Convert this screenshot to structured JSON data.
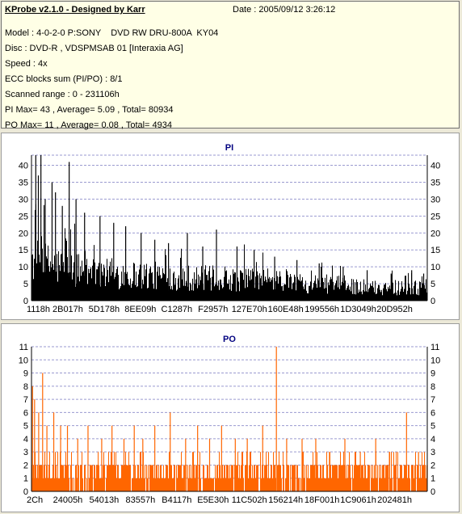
{
  "header": {
    "app_title": "KProbe v2.1.0 - Designed by Karr",
    "date": "Date : 2005/09/12 3:26:12",
    "model": "Model : 4-0-2-0 P:SONY    DVD RW DRU-800A  KY04",
    "disc": "Disc : DVD-R , VDSPMSAB 01 [Interaxia AG]",
    "speed": "Speed : 4x",
    "ecc": "ECC blocks sum (PI/PO) : 8/1",
    "range": "Scanned range : 0 - 231106h",
    "pi_stats": "PI Max= 43 , Average= 5.09 , Total= 80934",
    "po_stats": "PO Max= 11 , Average= 0.08 , Total= 4934"
  },
  "colors": {
    "pi_bars": "#000000",
    "po_bars": "#ff6600",
    "grid": "#9a9ad0",
    "axis": "#000000",
    "title": "#000080"
  },
  "chart_data": [
    {
      "type": "bar",
      "title": "PI",
      "series_color": "#000000",
      "x_tick_labels": [
        "1118h",
        "2B017h",
        "5D178h",
        "8EE09h",
        "C1287h",
        "F2957h",
        "127E70h",
        "160E48h",
        "199556h",
        "1D3049h",
        "20D952h"
      ],
      "y_ticks": [
        0,
        5,
        10,
        15,
        20,
        25,
        30,
        35,
        40
      ],
      "ylim": [
        0,
        43
      ],
      "xlim": [
        0,
        231106
      ],
      "max": 43,
      "average": 5.09,
      "total": 80934,
      "grid": true,
      "profile": [
        {
          "x": 0,
          "y": 14
        },
        {
          "x": 15000,
          "y": 12
        },
        {
          "x": 35000,
          "y": 10
        },
        {
          "x": 60000,
          "y": 9
        },
        {
          "x": 90000,
          "y": 8
        },
        {
          "x": 120000,
          "y": 7.5
        },
        {
          "x": 150000,
          "y": 6.5
        },
        {
          "x": 180000,
          "y": 5.5
        },
        {
          "x": 200000,
          "y": 4.5
        },
        {
          "x": 231106,
          "y": 4.5
        }
      ],
      "peaks": [
        {
          "x": 2500,
          "y": 43
        },
        {
          "x": 4000,
          "y": 37
        },
        {
          "x": 5500,
          "y": 43
        },
        {
          "x": 8000,
          "y": 30
        },
        {
          "x": 12000,
          "y": 35
        },
        {
          "x": 14000,
          "y": 32
        },
        {
          "x": 18000,
          "y": 28
        },
        {
          "x": 22000,
          "y": 41
        },
        {
          "x": 26000,
          "y": 30
        },
        {
          "x": 31000,
          "y": 26
        },
        {
          "x": 40000,
          "y": 25
        },
        {
          "x": 48000,
          "y": 23
        },
        {
          "x": 55000,
          "y": 22
        },
        {
          "x": 64000,
          "y": 20
        },
        {
          "x": 72000,
          "y": 18
        },
        {
          "x": 80000,
          "y": 17
        },
        {
          "x": 91000,
          "y": 20
        },
        {
          "x": 100000,
          "y": 16
        },
        {
          "x": 108000,
          "y": 21
        },
        {
          "x": 120000,
          "y": 16
        },
        {
          "x": 130000,
          "y": 15
        },
        {
          "x": 142000,
          "y": 13
        },
        {
          "x": 155000,
          "y": 12
        },
        {
          "x": 168000,
          "y": 11
        },
        {
          "x": 182000,
          "y": 10
        },
        {
          "x": 196000,
          "y": 9
        },
        {
          "x": 210000,
          "y": 8
        },
        {
          "x": 222000,
          "y": 9
        },
        {
          "x": 229000,
          "y": 8
        }
      ]
    },
    {
      "type": "bar",
      "title": "PO",
      "series_color": "#ff6600",
      "x_tick_labels": [
        "2Ch",
        "24005h",
        "54013h",
        "83557h",
        "B4117h",
        "E5E30h",
        "11C502h",
        "156214h",
        "18F001h",
        "1C9061h",
        "202481h"
      ],
      "y_ticks": [
        0,
        1,
        2,
        3,
        4,
        5,
        6,
        7,
        8,
        9,
        10,
        11
      ],
      "ylim": [
        0,
        11
      ],
      "xlim": [
        0,
        231106
      ],
      "max": 11,
      "average": 0.08,
      "total": 4934,
      "grid": true,
      "baseline_level": 2,
      "spikes": [
        {
          "x": 600,
          "y": 8
        },
        {
          "x": 1800,
          "y": 7
        },
        {
          "x": 4200,
          "y": 6
        },
        {
          "x": 6500,
          "y": 9
        },
        {
          "x": 9000,
          "y": 5
        },
        {
          "x": 13000,
          "y": 6
        },
        {
          "x": 17000,
          "y": 5
        },
        {
          "x": 21000,
          "y": 5
        },
        {
          "x": 27000,
          "y": 4
        },
        {
          "x": 33000,
          "y": 5
        },
        {
          "x": 41000,
          "y": 4
        },
        {
          "x": 47000,
          "y": 5
        },
        {
          "x": 54000,
          "y": 4
        },
        {
          "x": 60000,
          "y": 5
        },
        {
          "x": 65000,
          "y": 4
        },
        {
          "x": 72000,
          "y": 5
        },
        {
          "x": 81000,
          "y": 6
        },
        {
          "x": 90000,
          "y": 4
        },
        {
          "x": 97000,
          "y": 5
        },
        {
          "x": 104000,
          "y": 4
        },
        {
          "x": 111000,
          "y": 5
        },
        {
          "x": 119000,
          "y": 4
        },
        {
          "x": 126000,
          "y": 4
        },
        {
          "x": 135000,
          "y": 5
        },
        {
          "x": 143000,
          "y": 11
        },
        {
          "x": 149000,
          "y": 4
        },
        {
          "x": 158000,
          "y": 4
        },
        {
          "x": 166000,
          "y": 4
        },
        {
          "x": 174000,
          "y": 3
        },
        {
          "x": 183000,
          "y": 4
        },
        {
          "x": 192000,
          "y": 3
        },
        {
          "x": 201000,
          "y": 4
        },
        {
          "x": 209000,
          "y": 3
        },
        {
          "x": 219000,
          "y": 6
        },
        {
          "x": 226000,
          "y": 3
        }
      ]
    }
  ]
}
